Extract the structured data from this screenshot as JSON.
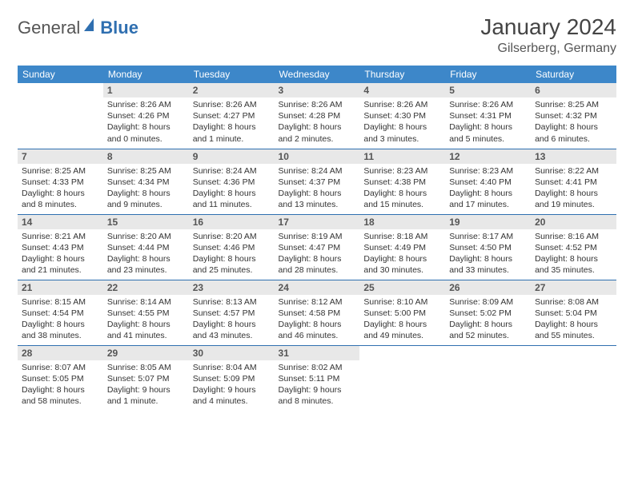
{
  "logo": {
    "text1": "General",
    "text2": "Blue"
  },
  "title": "January 2024",
  "location": "Gilserberg, Germany",
  "colors": {
    "header_bg": "#3d87c9",
    "border": "#2f6fb0",
    "daynum_bg": "#e8e8e8",
    "text": "#333333"
  },
  "weekdays": [
    "Sunday",
    "Monday",
    "Tuesday",
    "Wednesday",
    "Thursday",
    "Friday",
    "Saturday"
  ],
  "weeks": [
    [
      null,
      {
        "n": "1",
        "sr": "8:26 AM",
        "ss": "4:26 PM",
        "dl": "8 hours and 0 minutes."
      },
      {
        "n": "2",
        "sr": "8:26 AM",
        "ss": "4:27 PM",
        "dl": "8 hours and 1 minute."
      },
      {
        "n": "3",
        "sr": "8:26 AM",
        "ss": "4:28 PM",
        "dl": "8 hours and 2 minutes."
      },
      {
        "n": "4",
        "sr": "8:26 AM",
        "ss": "4:30 PM",
        "dl": "8 hours and 3 minutes."
      },
      {
        "n": "5",
        "sr": "8:26 AM",
        "ss": "4:31 PM",
        "dl": "8 hours and 5 minutes."
      },
      {
        "n": "6",
        "sr": "8:25 AM",
        "ss": "4:32 PM",
        "dl": "8 hours and 6 minutes."
      }
    ],
    [
      {
        "n": "7",
        "sr": "8:25 AM",
        "ss": "4:33 PM",
        "dl": "8 hours and 8 minutes."
      },
      {
        "n": "8",
        "sr": "8:25 AM",
        "ss": "4:34 PM",
        "dl": "8 hours and 9 minutes."
      },
      {
        "n": "9",
        "sr": "8:24 AM",
        "ss": "4:36 PM",
        "dl": "8 hours and 11 minutes."
      },
      {
        "n": "10",
        "sr": "8:24 AM",
        "ss": "4:37 PM",
        "dl": "8 hours and 13 minutes."
      },
      {
        "n": "11",
        "sr": "8:23 AM",
        "ss": "4:38 PM",
        "dl": "8 hours and 15 minutes."
      },
      {
        "n": "12",
        "sr": "8:23 AM",
        "ss": "4:40 PM",
        "dl": "8 hours and 17 minutes."
      },
      {
        "n": "13",
        "sr": "8:22 AM",
        "ss": "4:41 PM",
        "dl": "8 hours and 19 minutes."
      }
    ],
    [
      {
        "n": "14",
        "sr": "8:21 AM",
        "ss": "4:43 PM",
        "dl": "8 hours and 21 minutes."
      },
      {
        "n": "15",
        "sr": "8:20 AM",
        "ss": "4:44 PM",
        "dl": "8 hours and 23 minutes."
      },
      {
        "n": "16",
        "sr": "8:20 AM",
        "ss": "4:46 PM",
        "dl": "8 hours and 25 minutes."
      },
      {
        "n": "17",
        "sr": "8:19 AM",
        "ss": "4:47 PM",
        "dl": "8 hours and 28 minutes."
      },
      {
        "n": "18",
        "sr": "8:18 AM",
        "ss": "4:49 PM",
        "dl": "8 hours and 30 minutes."
      },
      {
        "n": "19",
        "sr": "8:17 AM",
        "ss": "4:50 PM",
        "dl": "8 hours and 33 minutes."
      },
      {
        "n": "20",
        "sr": "8:16 AM",
        "ss": "4:52 PM",
        "dl": "8 hours and 35 minutes."
      }
    ],
    [
      {
        "n": "21",
        "sr": "8:15 AM",
        "ss": "4:54 PM",
        "dl": "8 hours and 38 minutes."
      },
      {
        "n": "22",
        "sr": "8:14 AM",
        "ss": "4:55 PM",
        "dl": "8 hours and 41 minutes."
      },
      {
        "n": "23",
        "sr": "8:13 AM",
        "ss": "4:57 PM",
        "dl": "8 hours and 43 minutes."
      },
      {
        "n": "24",
        "sr": "8:12 AM",
        "ss": "4:58 PM",
        "dl": "8 hours and 46 minutes."
      },
      {
        "n": "25",
        "sr": "8:10 AM",
        "ss": "5:00 PM",
        "dl": "8 hours and 49 minutes."
      },
      {
        "n": "26",
        "sr": "8:09 AM",
        "ss": "5:02 PM",
        "dl": "8 hours and 52 minutes."
      },
      {
        "n": "27",
        "sr": "8:08 AM",
        "ss": "5:04 PM",
        "dl": "8 hours and 55 minutes."
      }
    ],
    [
      {
        "n": "28",
        "sr": "8:07 AM",
        "ss": "5:05 PM",
        "dl": "8 hours and 58 minutes."
      },
      {
        "n": "29",
        "sr": "8:05 AM",
        "ss": "5:07 PM",
        "dl": "9 hours and 1 minute."
      },
      {
        "n": "30",
        "sr": "8:04 AM",
        "ss": "5:09 PM",
        "dl": "9 hours and 4 minutes."
      },
      {
        "n": "31",
        "sr": "8:02 AM",
        "ss": "5:11 PM",
        "dl": "9 hours and 8 minutes."
      },
      null,
      null,
      null
    ]
  ],
  "labels": {
    "sunrise": "Sunrise:",
    "sunset": "Sunset:",
    "daylight": "Daylight:"
  }
}
